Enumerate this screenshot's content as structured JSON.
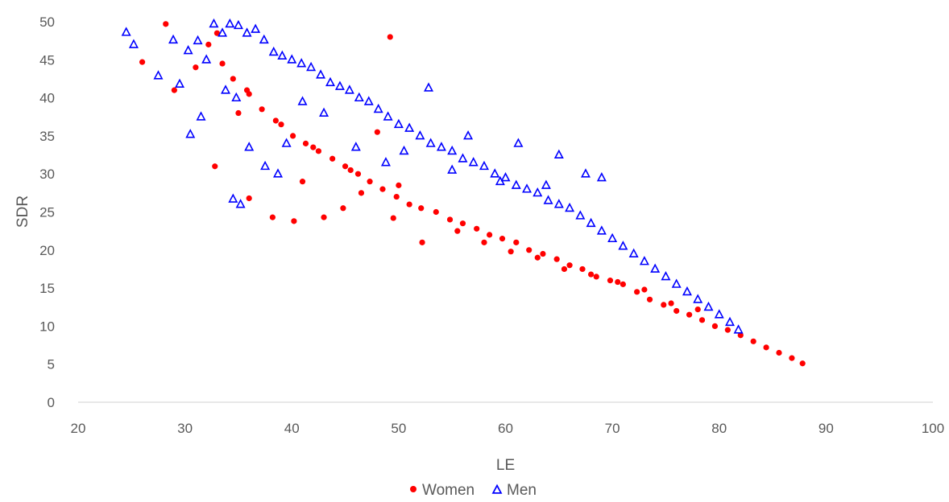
{
  "chart_data": {
    "type": "scatter",
    "title": "",
    "xlabel": "LE",
    "ylabel": "SDR",
    "xlim": [
      20,
      100
    ],
    "ylim": [
      0,
      50
    ],
    "xticks": [
      20,
      30,
      40,
      50,
      60,
      70,
      80,
      90,
      100
    ],
    "yticks": [
      0,
      5,
      10,
      15,
      20,
      25,
      30,
      35,
      40,
      45,
      50
    ],
    "x_tick_labels": [
      "20",
      "30",
      "40",
      "50",
      "60",
      "70",
      "80",
      "90",
      "100"
    ],
    "y_tick_labels": [
      "0",
      "5",
      "10",
      "15",
      "20",
      "25",
      "30",
      "35",
      "40",
      "45",
      "50"
    ],
    "grid": false,
    "legend_position": "bottom",
    "series": [
      {
        "name": "Women",
        "color": "#ff0000",
        "marker": "circle",
        "x": [
          28.2,
          31.0,
          32.2,
          33.5,
          34.5,
          35.8,
          36.0,
          37.2,
          38.5,
          40.1,
          41.3,
          42.5,
          43.8,
          45.0,
          46.2,
          47.3,
          48.5,
          49.8,
          51.0,
          52.1,
          53.5,
          54.8,
          56.0,
          57.3,
          58.5,
          59.7,
          61.0,
          62.2,
          63.5,
          64.8,
          66.0,
          67.2,
          68.5,
          69.8,
          71.0,
          72.3,
          73.5,
          74.8,
          76.0,
          77.2,
          78.4,
          79.6,
          80.8,
          82.0,
          83.2,
          84.4,
          85.6,
          86.8,
          87.8,
          26.0,
          29.0,
          32.8,
          33.0,
          36.0,
          38.2,
          40.2,
          43.0,
          49.2,
          49.5,
          52.2,
          44.8,
          46.5,
          42.0,
          39.0,
          35.0,
          50.0,
          55.5,
          58.0,
          60.5,
          63.0,
          65.5,
          68.0,
          70.5,
          73.0,
          75.5,
          78.0,
          48.0,
          45.5,
          41.0
        ],
        "y": [
          49.7,
          44.0,
          47.0,
          44.5,
          42.5,
          41.0,
          40.5,
          38.5,
          37.0,
          35.0,
          34.0,
          33.0,
          32.0,
          31.0,
          30.0,
          29.0,
          28.0,
          27.0,
          26.0,
          25.5,
          25.0,
          24.0,
          23.5,
          22.8,
          22.0,
          21.5,
          21.0,
          20.0,
          19.5,
          18.8,
          18.0,
          17.5,
          16.5,
          16.0,
          15.5,
          14.5,
          13.5,
          12.8,
          12.0,
          11.5,
          10.8,
          10.0,
          9.5,
          8.8,
          8.0,
          7.2,
          6.5,
          5.8,
          5.1,
          44.7,
          41.0,
          31.0,
          48.5,
          26.8,
          24.3,
          23.8,
          24.3,
          48.0,
          24.2,
          21.0,
          25.5,
          27.5,
          33.5,
          36.5,
          38.0,
          28.5,
          22.5,
          21.0,
          19.8,
          19.0,
          17.5,
          16.8,
          15.8,
          14.8,
          13.0,
          12.2,
          35.5,
          30.5,
          29.0
        ]
      },
      {
        "name": "Men",
        "color": "#0000ff",
        "marker": "triangle",
        "x": [
          24.5,
          25.2,
          27.5,
          28.9,
          29.5,
          30.3,
          31.2,
          32.0,
          32.7,
          33.5,
          34.2,
          35.0,
          35.8,
          36.6,
          37.4,
          38.3,
          39.1,
          40.0,
          40.9,
          41.8,
          42.7,
          43.6,
          44.5,
          45.4,
          46.3,
          47.2,
          48.1,
          49.0,
          50.0,
          51.0,
          52.0,
          53.0,
          54.0,
          55.0,
          56.0,
          57.0,
          58.0,
          59.0,
          60.0,
          61.0,
          62.0,
          63.0,
          64.0,
          65.0,
          66.0,
          67.0,
          68.0,
          69.0,
          70.0,
          71.0,
          72.0,
          73.0,
          74.0,
          75.0,
          76.0,
          77.0,
          78.0,
          79.0,
          80.0,
          81.0,
          81.8,
          34.5,
          35.2,
          36.0,
          37.5,
          38.7,
          30.5,
          31.5,
          33.8,
          34.8,
          39.5,
          41.0,
          43.0,
          52.8,
          56.5,
          61.2,
          65.0,
          67.5,
          69.0,
          46.0,
          48.8,
          50.5,
          55.0,
          59.5,
          63.8
        ],
        "y": [
          48.6,
          47.0,
          42.9,
          47.6,
          41.8,
          46.2,
          47.5,
          45.0,
          49.7,
          48.5,
          49.7,
          49.5,
          48.5,
          49.0,
          47.6,
          46.0,
          45.5,
          45.0,
          44.5,
          44.0,
          43.0,
          42.0,
          41.5,
          41.0,
          40.0,
          39.5,
          38.5,
          37.5,
          36.5,
          36.0,
          35.0,
          34.0,
          33.5,
          33.0,
          32.0,
          31.5,
          31.0,
          30.0,
          29.5,
          28.5,
          28.0,
          27.5,
          26.5,
          26.0,
          25.5,
          24.5,
          23.5,
          22.5,
          21.5,
          20.5,
          19.5,
          18.5,
          17.5,
          16.5,
          15.5,
          14.5,
          13.5,
          12.5,
          11.5,
          10.5,
          9.5,
          26.7,
          26.0,
          33.5,
          31.0,
          30.0,
          35.2,
          37.5,
          41.0,
          40.0,
          34.0,
          39.5,
          38.0,
          41.3,
          35.0,
          34.0,
          32.5,
          30.0,
          29.5,
          33.5,
          31.5,
          33.0,
          30.5,
          29.0,
          28.5
        ]
      }
    ]
  }
}
